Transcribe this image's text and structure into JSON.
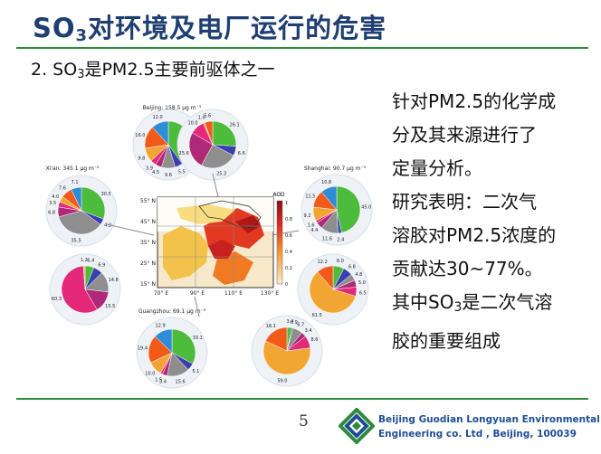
{
  "title": {
    "prefix": "SO",
    "sub": "3",
    "suffix": "对环境及电厂运行的危害"
  },
  "subtitle": {
    "prefix": "2. SO",
    "sub": "3",
    "suffix": "是PM2.5主要前驱体之一"
  },
  "figure": {
    "cities": [
      {
        "name": "Beijing: 158.5 μg m⁻³",
        "values": [
          40.7,
          5.5,
          9.6,
          4.5,
          3.9,
          9.8,
          16.0,
          12.0
        ]
      },
      {
        "name": "",
        "values": [
          26.1,
          6.6,
          25.3,
          25.6,
          10.0,
          1.0,
          5.6
        ]
      },
      {
        "name": "Xi'an: 345.1 μg m⁻³",
        "values": [
          30.5,
          4.2,
          35.5,
          6.8,
          3.5,
          4.0,
          7.6,
          7.1
        ]
      },
      {
        "name": "Shanghai: 90.7 μg m⁻³",
        "values": [
          45.0,
          2.4,
          11.6,
          4.4,
          1.6,
          9.2,
          11.5,
          10.8
        ]
      },
      {
        "name": "",
        "values": [
          6.4,
          6.9,
          14.8,
          15.5,
          60.3,
          1.2
        ]
      },
      {
        "name": "",
        "values": [
          8.0,
          6.8,
          4.8,
          5.0,
          6.5,
          61.5,
          12.2
        ]
      },
      {
        "name": "Guangzhou: 69.1 μg m⁻³",
        "values": [
          33.1,
          5.1,
          15.6,
          3.4,
          1.5,
          10.0,
          19.4,
          12.9
        ]
      },
      {
        "name": "",
        "values": [
          3.4,
          0.9,
          6.7,
          3.4,
          8.6,
          59.0,
          18.1
        ]
      }
    ],
    "map": {
      "colorbar_label": "AOD",
      "colorbar_ticks": [
        "1",
        "0.8",
        "0.6",
        "0.4",
        "0.2",
        "0"
      ],
      "lat_labels": [
        "55° N",
        "45° N",
        "35° N",
        "25° N",
        "15° N"
      ],
      "lon_labels": [
        "70° E",
        "90° E",
        "110° E",
        "130° E"
      ]
    }
  },
  "text_lines": [
    "针对PM2.5的化学成",
    "分及其来源进行了",
    "定量分析。",
    "研究表明：二次气",
    "溶胶对PM2.5浓度的",
    "贡献达30~77%。"
  ],
  "text_last": {
    "line1_prefix": "其中SO",
    "line1_sub": "3",
    "line1_suffix": "是二次气溶",
    "line2": "胶的重要组成"
  },
  "footer": {
    "page_number": "5",
    "company_line1": "Beijing Guodian Longyuan Environmental",
    "company_line2": "Engineering co. Ltd , Beijing, 100039"
  },
  "pie_colors": [
    "#4dbb3c",
    "#3a3fb0",
    "#8e8e8e",
    "#b02878",
    "#e4287a",
    "#f2a532",
    "#f25a1a",
    "#2f8cd6",
    "#252525",
    "#50c8e0"
  ]
}
